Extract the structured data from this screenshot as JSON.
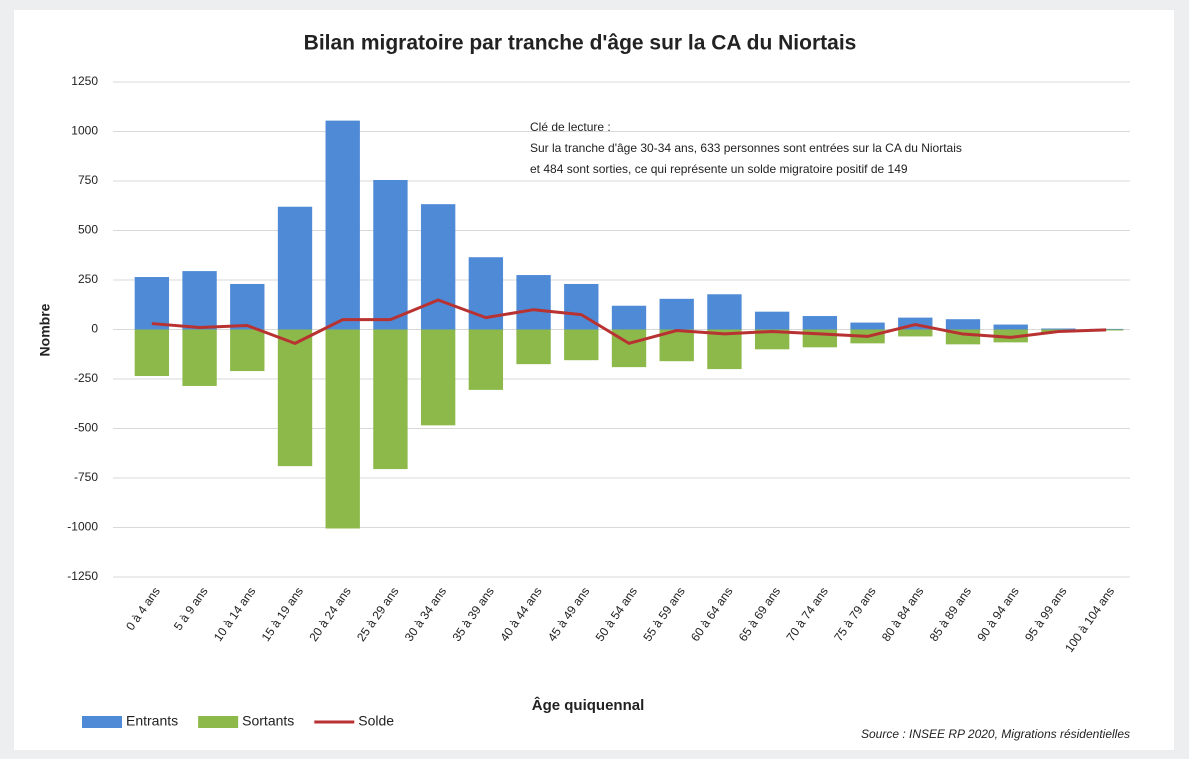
{
  "chart_data": {
    "type": "bar",
    "title": "Bilan migratoire par tranche d'âge sur la CA du Niortais",
    "y_label": "Nombre",
    "x_label": "Âge quiquennal",
    "annotation": [
      "Clé de lecture :",
      "Sur la tranche d'âge  30-34 ans, 633 personnes sont entrées sur la CA du Niortais",
      "et 484 sont sorties, ce qui représente un solde migratoire positif de 149"
    ],
    "source": "Source : INSEE RP 2020, Migrations résidentielles",
    "categories": [
      "0 à 4 ans",
      "5 à 9 ans",
      "10 à 14 ans",
      "15 à 19 ans",
      "20 à 24 ans",
      "25 à 29 ans",
      "30 à 34 ans",
      "35 à 39 ans",
      "40 à 44 ans",
      "45 à 49 ans",
      "50 à 54 ans",
      "55 à 59 ans",
      "60 à 64 ans",
      "65 à 69 ans",
      "70 à 74 ans",
      "75 à 79 ans",
      "80 à 84 ans",
      "85 à 89 ans",
      "90 à 94 ans",
      "95 à 99 ans",
      "100 à 104 ans"
    ],
    "series": [
      {
        "name": "Entrants",
        "color": "#4f8ad6",
        "kind": "bar",
        "values": [
          265,
          295,
          230,
          620,
          1055,
          755,
          633,
          365,
          275,
          230,
          120,
          155,
          178,
          90,
          68,
          35,
          60,
          52,
          25,
          5,
          3
        ]
      },
      {
        "name": "Sortants",
        "color": "#8db84a",
        "kind": "bar",
        "values": [
          -235,
          -285,
          -210,
          -690,
          -1005,
          -705,
          -484,
          -305,
          -175,
          -155,
          -190,
          -160,
          -200,
          -100,
          -90,
          -70,
          -35,
          -75,
          -65,
          -15,
          -5
        ]
      },
      {
        "name": "Solde",
        "color": "#b83232",
        "kind": "line",
        "values": [
          30,
          10,
          20,
          -70,
          50,
          50,
          149,
          60,
          100,
          75,
          -70,
          -5,
          -22,
          -10,
          -22,
          -35,
          25,
          -23,
          -40,
          -10,
          -2
        ]
      }
    ],
    "ylim": [
      -1250,
      1250
    ],
    "yticks": [
      -1250,
      -1000,
      -750,
      -500,
      -250,
      0,
      250,
      500,
      750,
      1000,
      1250
    ],
    "grid": true
  }
}
